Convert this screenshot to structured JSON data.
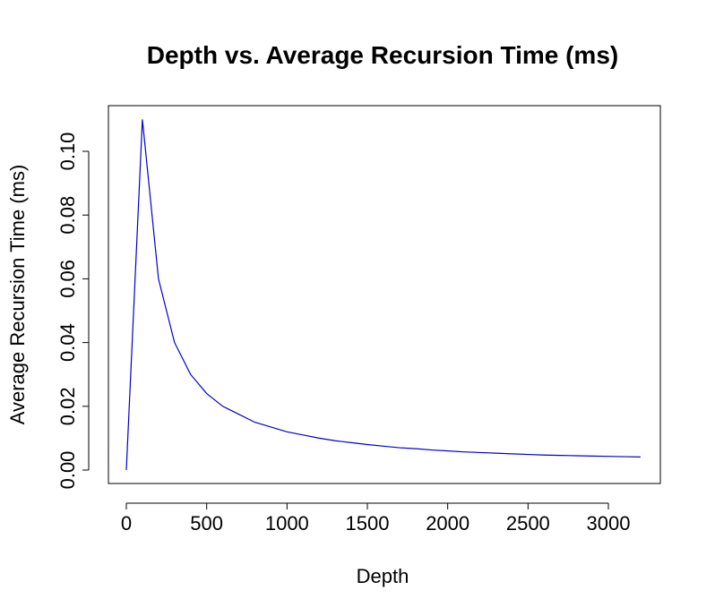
{
  "chart_data": {
    "type": "line",
    "title": "Depth vs. Average Recursion Time (ms)",
    "xlabel": "Depth",
    "ylabel": "Average Recursion Time (ms)",
    "xlim": [
      0,
      3200
    ],
    "ylim": [
      0,
      0.11
    ],
    "xticks": [
      0,
      500,
      1000,
      1500,
      2000,
      2500,
      3000
    ],
    "xtick_labels": [
      "0",
      "500",
      "1000",
      "1500",
      "2000",
      "2500",
      "3000"
    ],
    "yticks": [
      0,
      0.02,
      0.04,
      0.06,
      0.08,
      0.1
    ],
    "ytick_labels": [
      "0.00",
      "0.02",
      "0.04",
      "0.06",
      "0.08",
      "0.10"
    ],
    "grid": false,
    "legend": "none",
    "series": [
      {
        "color": "#0000cc",
        "x": [
          0,
          100,
          200,
          300,
          400,
          500,
          600,
          700,
          800,
          900,
          1000,
          1100,
          1200,
          1300,
          1400,
          1500,
          1600,
          1700,
          1800,
          1900,
          2000,
          2100,
          2200,
          2300,
          2400,
          2500,
          2600,
          2700,
          2800,
          2900,
          3000,
          3100,
          3200
        ],
        "y": [
          0.0,
          0.11,
          0.06,
          0.04,
          0.03,
          0.024,
          0.02,
          0.0175,
          0.015,
          0.0135,
          0.012,
          0.011,
          0.01,
          0.0092,
          0.0086,
          0.008,
          0.0075,
          0.007,
          0.0067,
          0.0063,
          0.006,
          0.0057,
          0.0055,
          0.0053,
          0.0051,
          0.0049,
          0.0047,
          0.0046,
          0.0045,
          0.0044,
          0.0043,
          0.0042,
          0.0041
        ]
      }
    ]
  }
}
